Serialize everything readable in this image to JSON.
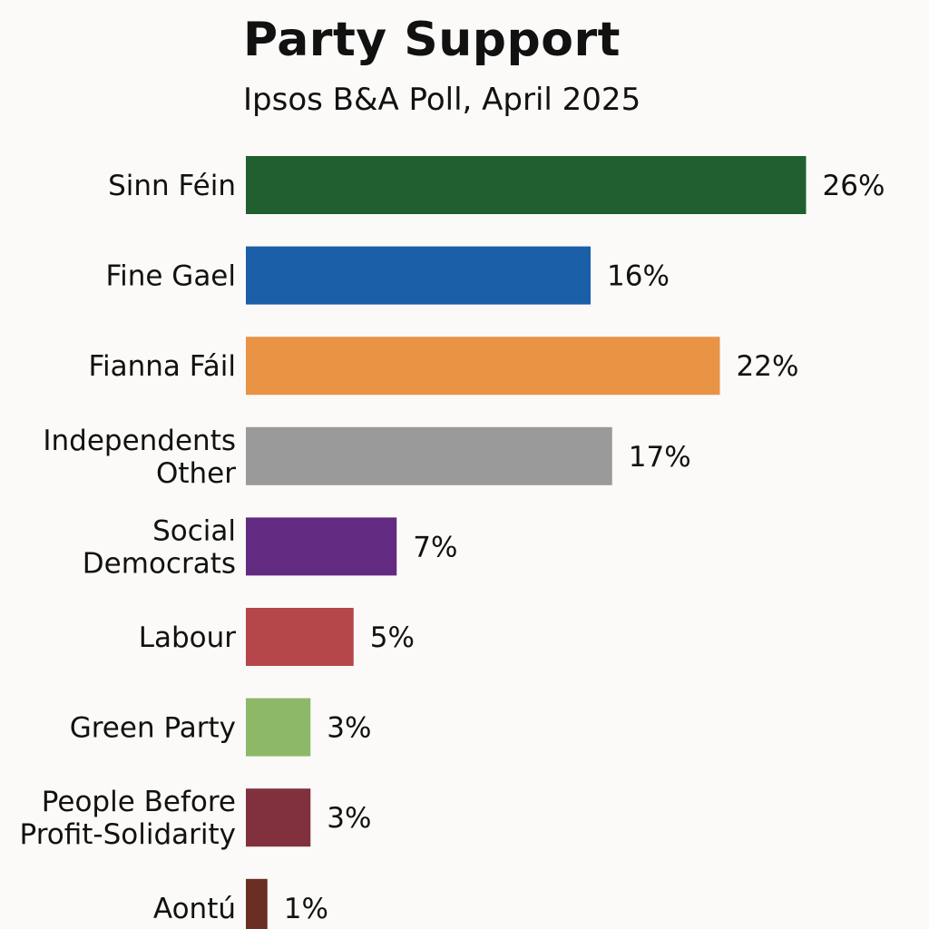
{
  "chart_data": {
    "type": "bar",
    "orientation": "horizontal",
    "title": "Party Support",
    "subtitle": "Ipsos B&A Poll, April 2025",
    "categories": [
      [
        "Sinn Féin"
      ],
      [
        "Fine Gael"
      ],
      [
        "Fianna Fáil"
      ],
      [
        "Independents",
        "Other"
      ],
      [
        "Social",
        "Democrats"
      ],
      [
        "Labour"
      ],
      [
        "Green Party"
      ],
      [
        "People Before",
        "Profit-Solidarity"
      ],
      [
        "Aontú"
      ]
    ],
    "values": [
      26,
      16,
      22,
      17,
      7,
      5,
      3,
      3,
      1
    ],
    "value_labels": [
      "26%",
      "16%",
      "22%",
      "17%",
      "7%",
      "5%",
      "3%",
      "3%",
      "1%"
    ],
    "colors": [
      "#215f30",
      "#1b5fa8",
      "#e99344",
      "#9a9a9a",
      "#632a82",
      "#b54649",
      "#8db867",
      "#81313d",
      "#6a2e22"
    ],
    "xlabel": "",
    "ylabel": "",
    "grid": false,
    "legend": "none"
  }
}
